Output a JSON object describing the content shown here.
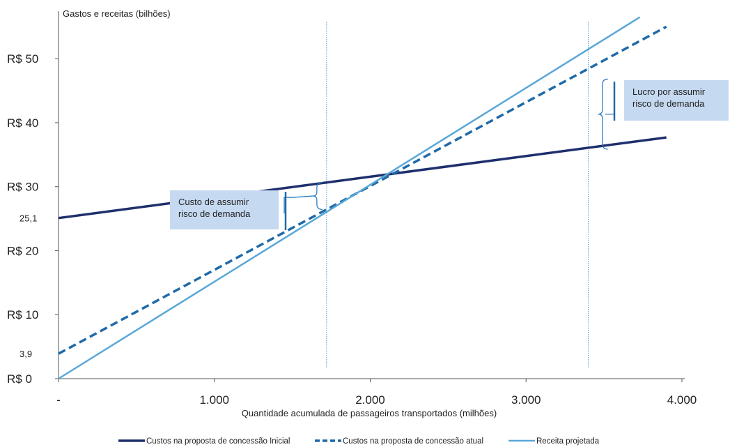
{
  "chart_data": {
    "type": "line",
    "ylabel": "Gastos e receitas (bilhões)",
    "xlabel": "Quantidade  acumulada de passageiros transportados (milhões)",
    "xlim": [
      0,
      4000
    ],
    "ylim": [
      0,
      57
    ],
    "x_ticks": [
      {
        "value": 0,
        "label": "-"
      },
      {
        "value": 1000,
        "label": "1.000"
      },
      {
        "value": 2000,
        "label": "2.000"
      },
      {
        "value": 3000,
        "label": "3.000"
      },
      {
        "value": 4000,
        "label": "4.000"
      }
    ],
    "y_ticks": [
      {
        "value": 0,
        "label": "R$ 0"
      },
      {
        "value": 10,
        "label": "R$ 10"
      },
      {
        "value": 20,
        "label": "R$ 20"
      },
      {
        "value": 30,
        "label": "R$ 30"
      },
      {
        "value": 40,
        "label": "R$ 40"
      },
      {
        "value": 50,
        "label": "R$ 50"
      }
    ],
    "y_extra_labels": [
      {
        "value": 25.1,
        "label": "25,1"
      },
      {
        "value": 3.9,
        "label": "3,9"
      }
    ],
    "series": [
      {
        "name": "Custos na proposta de concessão Inicial",
        "color": "#1f2f6e",
        "style": "solid",
        "x": [
          0,
          3900
        ],
        "y": [
          25.1,
          37.7
        ]
      },
      {
        "name": "Custos na proposta de concessão atual",
        "color": "#1f6aa8",
        "style": "dashed",
        "x": [
          0,
          3900
        ],
        "y": [
          3.9,
          55.0
        ]
      },
      {
        "name": "Receita projetada",
        "color": "#5aa8d8",
        "style": "solid",
        "x": [
          0,
          3730
        ],
        "y": [
          0,
          56.5
        ]
      }
    ],
    "vertical_lines": [
      1720,
      3400
    ],
    "annotations": [
      {
        "text": [
          "Custo de assumir",
          "risco de demanda"
        ]
      },
      {
        "text": [
          "Lucro por assumir",
          "risco de demanda"
        ]
      }
    ],
    "grid": false,
    "legend_position": "bottom"
  }
}
